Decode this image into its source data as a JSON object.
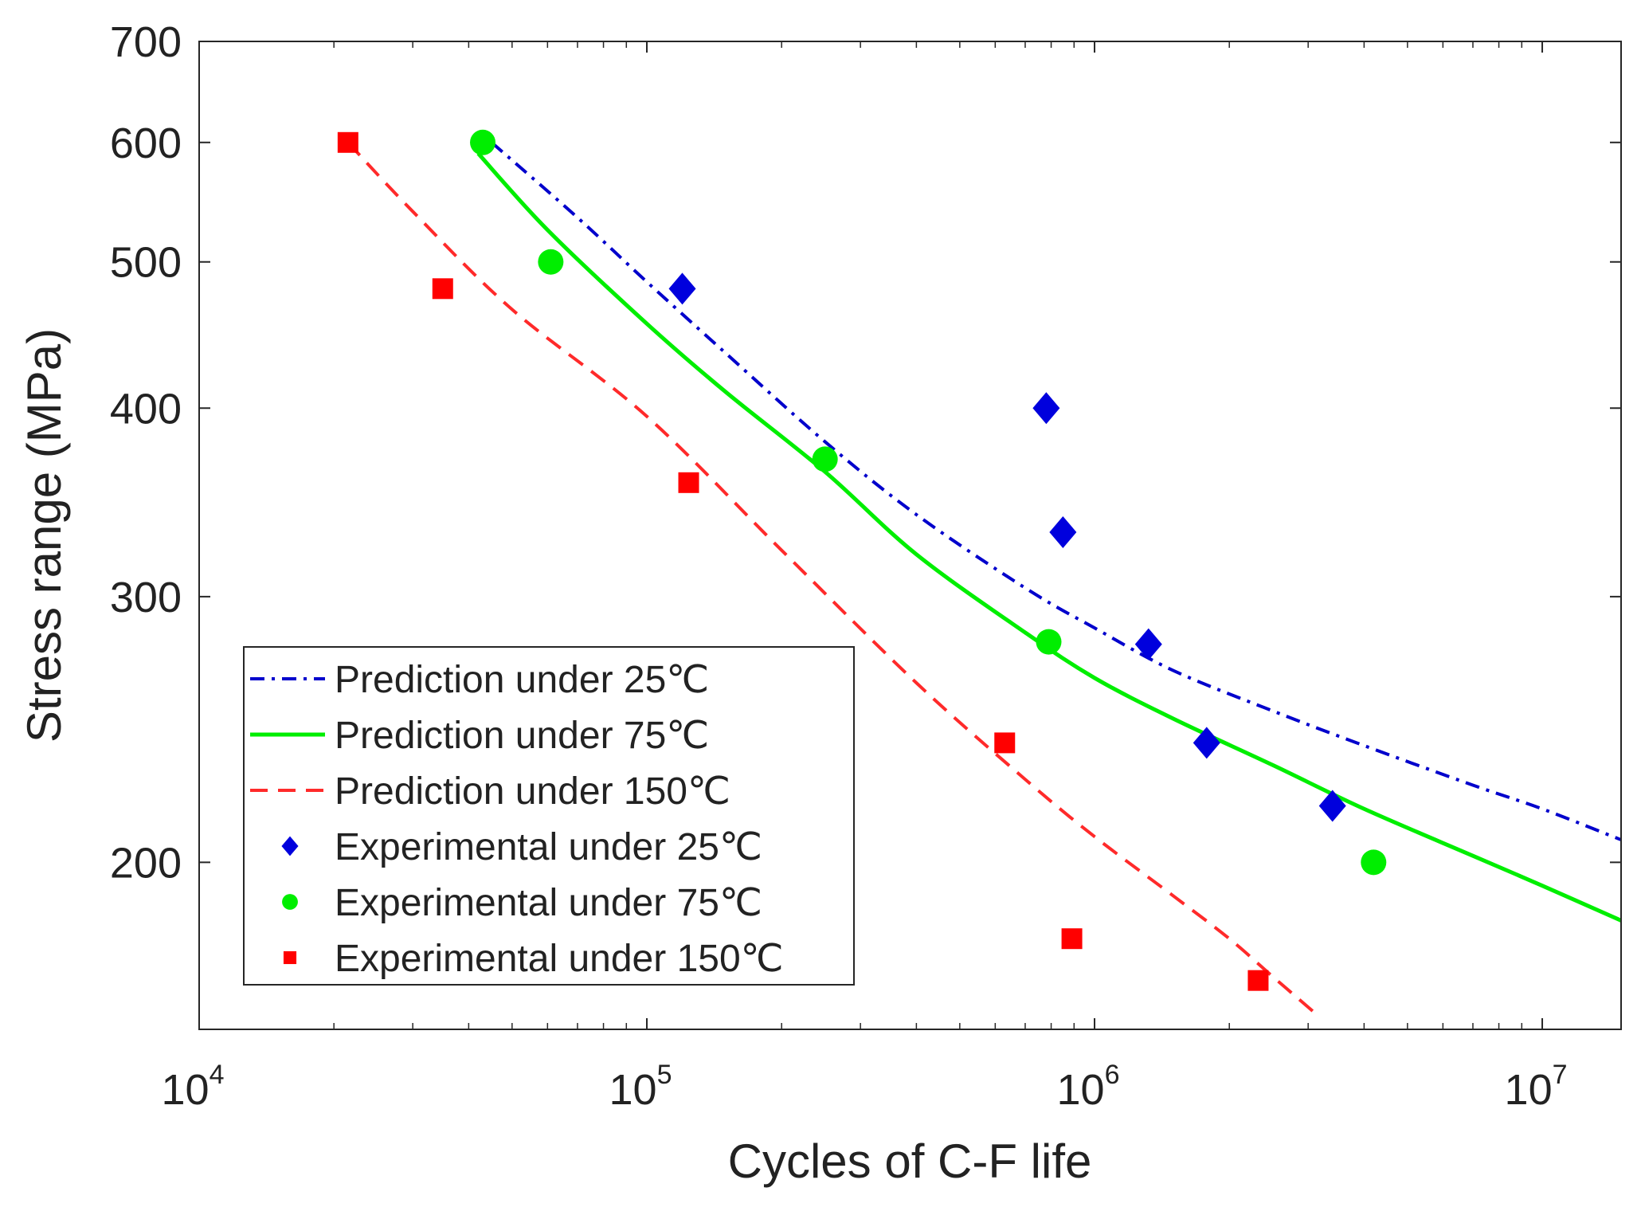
{
  "chart_data": {
    "type": "scatter",
    "x_scale": "log",
    "y_scale": "log",
    "xlabel": "Cycles of C-F life",
    "ylabel": "Stress range (MPa)",
    "xlim": [
      10000,
      15000000
    ],
    "ylim": [
      155,
      700
    ],
    "x_ticks": [
      {
        "value": 10000,
        "base": "10",
        "exp": "4"
      },
      {
        "value": 100000,
        "base": "10",
        "exp": "5"
      },
      {
        "value": 1000000,
        "base": "10",
        "exp": "6"
      },
      {
        "value": 10000000,
        "base": "10",
        "exp": "7"
      }
    ],
    "y_ticks": [
      {
        "value": 200,
        "label": "200"
      },
      {
        "value": 300,
        "label": "300"
      },
      {
        "value": 400,
        "label": "400"
      },
      {
        "value": 500,
        "label": "500"
      },
      {
        "value": 600,
        "label": "600"
      },
      {
        "value": 700,
        "label": "700"
      }
    ],
    "legend_position": "bottom-left",
    "series": [
      {
        "name": "Prediction under 25℃",
        "kind": "line",
        "style": "dashdot",
        "color": "#0000cc",
        "x": [
          45000,
          70000,
          100000,
          150000,
          250000,
          400000,
          700000,
          1000000,
          1500000,
          2500000,
          4000000,
          7000000,
          10000000,
          15000000
        ],
        "y": [
          600,
          535,
          485,
          435,
          380,
          340,
          304,
          286,
          268,
          252,
          239,
          225,
          217,
          207
        ]
      },
      {
        "name": "Prediction under 75℃",
        "kind": "line",
        "style": "solid",
        "color": "#00ee00",
        "x": [
          42000,
          60000,
          100000,
          150000,
          250000,
          400000,
          700000,
          1000000,
          1500000,
          2500000,
          4000000,
          7000000,
          10000000,
          15000000
        ],
        "y": [
          590,
          525,
          455,
          410,
          363,
          320,
          284,
          265,
          249,
          232,
          217,
          202,
          193,
          183
        ]
      },
      {
        "name": "Prediction under 150℃",
        "kind": "line",
        "style": "dashed",
        "color": "#ff2a2a",
        "x": [
          21500,
          30000,
          50000,
          100000,
          200000,
          400000,
          700000,
          1000000,
          1500000,
          2000000,
          2500000,
          3100000
        ],
        "y": [
          600,
          540,
          465,
          395,
          322,
          263,
          227,
          208,
          190,
          178,
          168,
          159
        ]
      },
      {
        "name": "Experimental under 25℃",
        "kind": "points",
        "marker": "diamond",
        "color": "#0000dd",
        "x": [
          120000,
          780000,
          850000,
          1320000,
          1780000,
          3400000
        ],
        "y": [
          480,
          400,
          331,
          279,
          240,
          218
        ]
      },
      {
        "name": "Experimental under 75℃",
        "kind": "points",
        "marker": "circle",
        "color": "#00ee00",
        "x": [
          43000,
          61000,
          250000,
          790000,
          4200000
        ],
        "y": [
          600,
          500,
          370,
          280,
          200
        ]
      },
      {
        "name": "Experimental under 150℃",
        "kind": "points",
        "marker": "square",
        "color": "#ff0000",
        "x": [
          21500,
          35000,
          124000,
          630000,
          890000,
          2320000
        ],
        "y": [
          600,
          480,
          357,
          240,
          178,
          167
        ]
      }
    ]
  }
}
